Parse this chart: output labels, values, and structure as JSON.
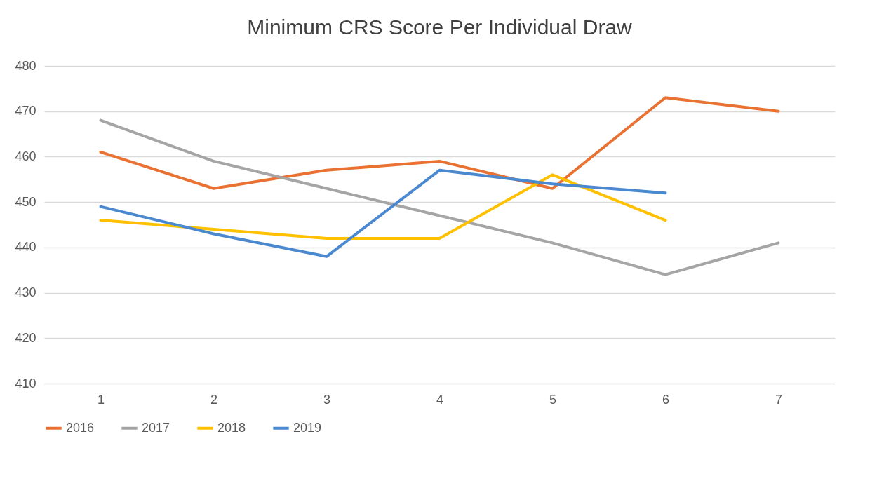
{
  "chart_data": {
    "type": "line",
    "title": "Minimum CRS Score Per Individual Draw",
    "categories": [
      "1",
      "2",
      "3",
      "4",
      "5",
      "6",
      "7"
    ],
    "series": [
      {
        "name": "2016",
        "color": "#e97132",
        "values": [
          461,
          453,
          457,
          459,
          453,
          473,
          470
        ]
      },
      {
        "name": "2017",
        "color": "#a5a5a5",
        "values": [
          468,
          459,
          453,
          447,
          441,
          434,
          441
        ]
      },
      {
        "name": "2018",
        "color": "#ffc000",
        "values": [
          446,
          444,
          442,
          442,
          456,
          446,
          null
        ]
      },
      {
        "name": "2019",
        "color": "#4a89d0",
        "values": [
          449,
          443,
          438,
          457,
          454,
          452,
          null
        ]
      }
    ],
    "ylim": [
      410,
      480
    ],
    "yticks": [
      410,
      420,
      430,
      440,
      450,
      460,
      470,
      480
    ],
    "grid": "y",
    "legend": "bottom",
    "marker": "none",
    "line_style": "solid"
  }
}
